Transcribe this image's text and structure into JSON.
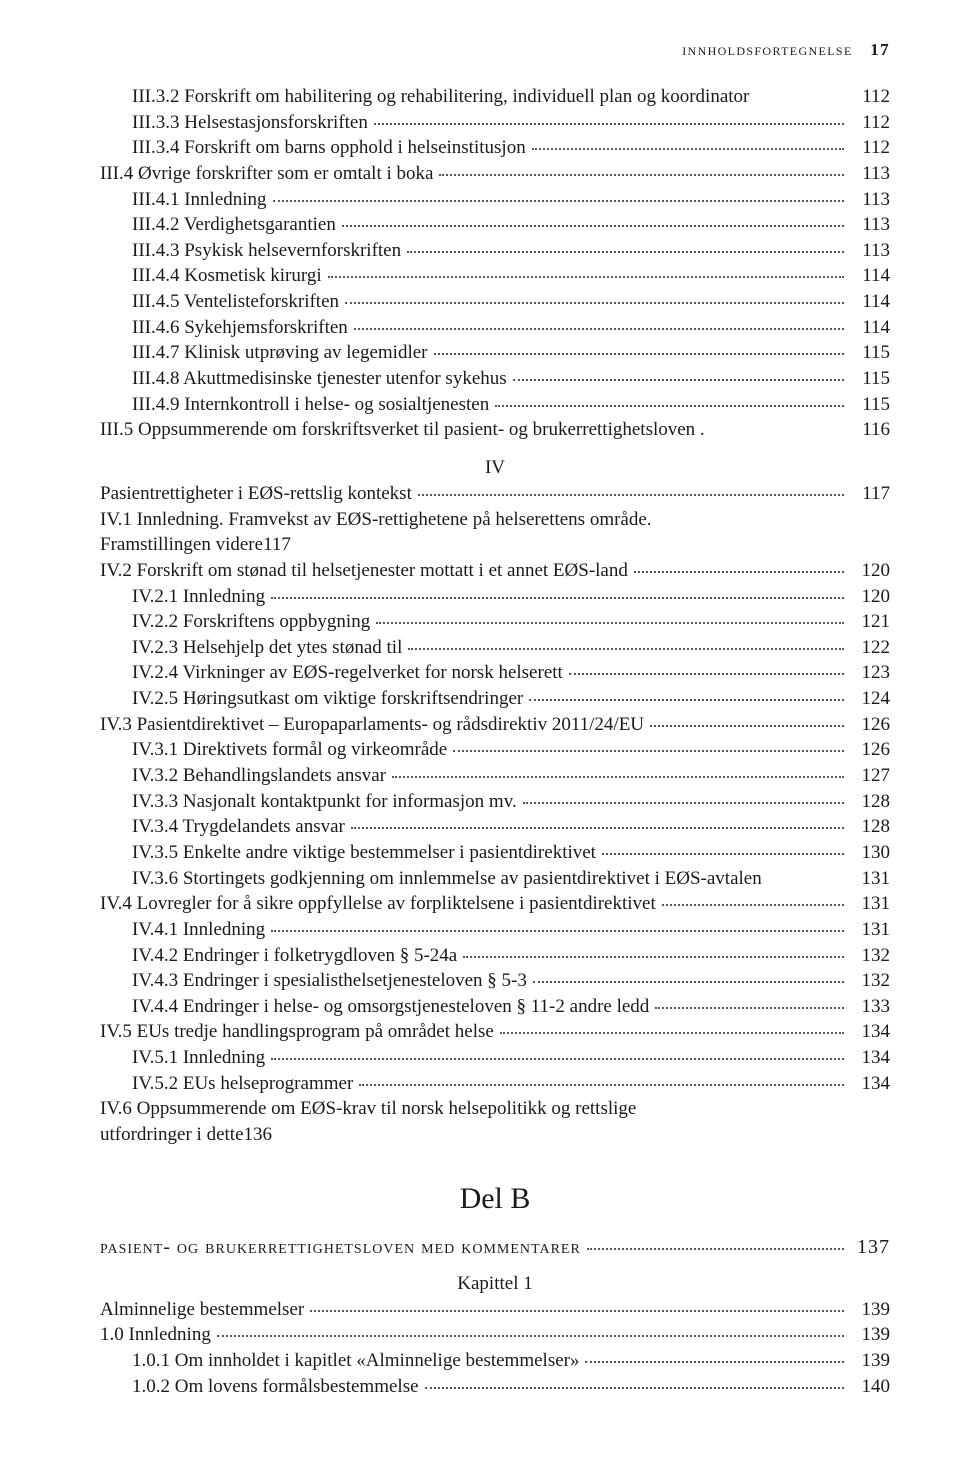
{
  "runningHead": {
    "text": "innholdsfortegnelse",
    "pageNum": "17"
  },
  "entries": [
    {
      "indent": 1,
      "text": "III.3.2 Forskrift om habilitering og rehabilitering, individuell plan og koordinator",
      "page": "112",
      "nodots": true
    },
    {
      "indent": 1,
      "text": "III.3.3 Helsestasjonsforskriften",
      "page": "112"
    },
    {
      "indent": 1,
      "text": "III.3.4 Forskrift om barns opphold i helseinstitusjon",
      "page": "112"
    },
    {
      "indent": 0,
      "text": "III.4 Øvrige forskrifter som er omtalt i boka",
      "page": "113"
    },
    {
      "indent": 1,
      "text": "III.4.1 Innledning",
      "page": "113"
    },
    {
      "indent": 1,
      "text": "III.4.2 Verdighetsgarantien",
      "page": "113"
    },
    {
      "indent": 1,
      "text": "III.4.3 Psykisk helsevernforskriften",
      "page": "113"
    },
    {
      "indent": 1,
      "text": "III.4.4 Kosmetisk kirurgi",
      "page": "114"
    },
    {
      "indent": 1,
      "text": "III.4.5 Ventelisteforskriften",
      "page": "114"
    },
    {
      "indent": 1,
      "text": "III.4.6 Sykehjemsforskriften",
      "page": "114"
    },
    {
      "indent": 1,
      "text": "III.4.7 Klinisk utprøving av legemidler",
      "page": "115"
    },
    {
      "indent": 1,
      "text": "III.4.8 Akuttmedisinske tjenester utenfor sykehus",
      "page": "115"
    },
    {
      "indent": 1,
      "text": "III.4.9 Internkontroll i helse- og sosialtjenesten",
      "page": "115"
    },
    {
      "indent": 0,
      "text": "III.5 Oppsummerende om forskriftsverket til pasient- og brukerrettighetsloven .",
      "page": "116",
      "nodots": true
    }
  ],
  "sectionIV": "IV",
  "entriesIV": [
    {
      "indent": 0,
      "text": "Pasientrettigheter i EØS-rettslig kontekst",
      "page": "117"
    },
    {
      "indent": 0,
      "twoLine": true,
      "line1": "IV.1 Innledning. Framvekst av EØS-rettighetene på helserettens område.",
      "line1indent": 0,
      "line2": "Framstillingen videre",
      "line2indent": 1,
      "page": "117"
    },
    {
      "indent": 0,
      "text": "IV.2 Forskrift om stønad til helsetjenester mottatt i et annet EØS-land",
      "page": "120"
    },
    {
      "indent": 1,
      "text": "IV.2.1 Innledning",
      "page": "120"
    },
    {
      "indent": 1,
      "text": "IV.2.2 Forskriftens oppbygning",
      "page": "121"
    },
    {
      "indent": 1,
      "text": "IV.2.3 Helsehjelp det ytes stønad til",
      "page": "122"
    },
    {
      "indent": 1,
      "text": "IV.2.4 Virkninger av EØS-regelverket for norsk helserett",
      "page": "123"
    },
    {
      "indent": 1,
      "text": "IV.2.5 Høringsutkast om viktige forskriftsendringer",
      "page": "124"
    },
    {
      "indent": 0,
      "text": "IV.3 Pasientdirektivet – Europaparlaments- og rådsdirektiv 2011/24/EU",
      "page": "126"
    },
    {
      "indent": 1,
      "text": "IV.3.1 Direktivets formål og virkeområde",
      "page": "126"
    },
    {
      "indent": 1,
      "text": "IV.3.2 Behandlingslandets ansvar",
      "page": "127"
    },
    {
      "indent": 1,
      "text": "IV.3.3 Nasjonalt kontaktpunkt for informasjon mv.",
      "page": "128"
    },
    {
      "indent": 1,
      "text": "IV.3.4 Trygdelandets ansvar",
      "page": "128"
    },
    {
      "indent": 1,
      "text": "IV.3.5 Enkelte andre viktige bestemmelser i pasientdirektivet",
      "page": "130"
    },
    {
      "indent": 1,
      "text": "IV.3.6 Stortingets godkjenning om innlemmelse av pasientdirektivet i EØS-avtalen",
      "page": "131",
      "nodots": true
    },
    {
      "indent": 0,
      "text": "IV.4 Lovregler for å sikre oppfyllelse av forpliktelsene i pasientdirektivet",
      "page": "131"
    },
    {
      "indent": 1,
      "text": "IV.4.1 Innledning",
      "page": "131"
    },
    {
      "indent": 1,
      "text": "IV.4.2 Endringer i folketrygdloven § 5-24a",
      "page": "132"
    },
    {
      "indent": 1,
      "text": "IV.4.3 Endringer i spesialisthelsetjenesteloven § 5-3",
      "page": "132"
    },
    {
      "indent": 1,
      "text": "IV.4.4 Endringer i helse- og omsorgstjenesteloven § 11-2 andre ledd",
      "page": "133"
    },
    {
      "indent": 0,
      "text": "IV.5 EUs tredje handlingsprogram på området helse",
      "page": "134"
    },
    {
      "indent": 1,
      "text": "IV.5.1 Innledning",
      "page": "134"
    },
    {
      "indent": 1,
      "text": "IV.5.2 EUs helseprogrammer",
      "page": "134"
    },
    {
      "indent": 0,
      "twoLine": true,
      "line1": "IV.6 Oppsummerende om EØS-krav til norsk helsepolitikk og rettslige",
      "line1indent": 0,
      "line2": "utfordringer i dette",
      "line2indent": 1,
      "page": "136"
    }
  ],
  "partB": "Del B",
  "partBTitle": {
    "text": "pasient- og brukerrettighetsloven med kommentarer",
    "page": "137"
  },
  "chapter1": "Kapittel 1",
  "entriesB": [
    {
      "indent": 0,
      "text": "Alminnelige bestemmelser",
      "page": "139"
    },
    {
      "indent": 0,
      "text": "1.0 Innledning",
      "page": "139"
    },
    {
      "indent": 1,
      "text": "1.0.1 Om innholdet i kapitlet «Alminnelige bestemmelser»",
      "page": "139"
    },
    {
      "indent": 1,
      "text": "1.0.2 Om lovens formålsbestemmelse",
      "page": "140"
    }
  ]
}
